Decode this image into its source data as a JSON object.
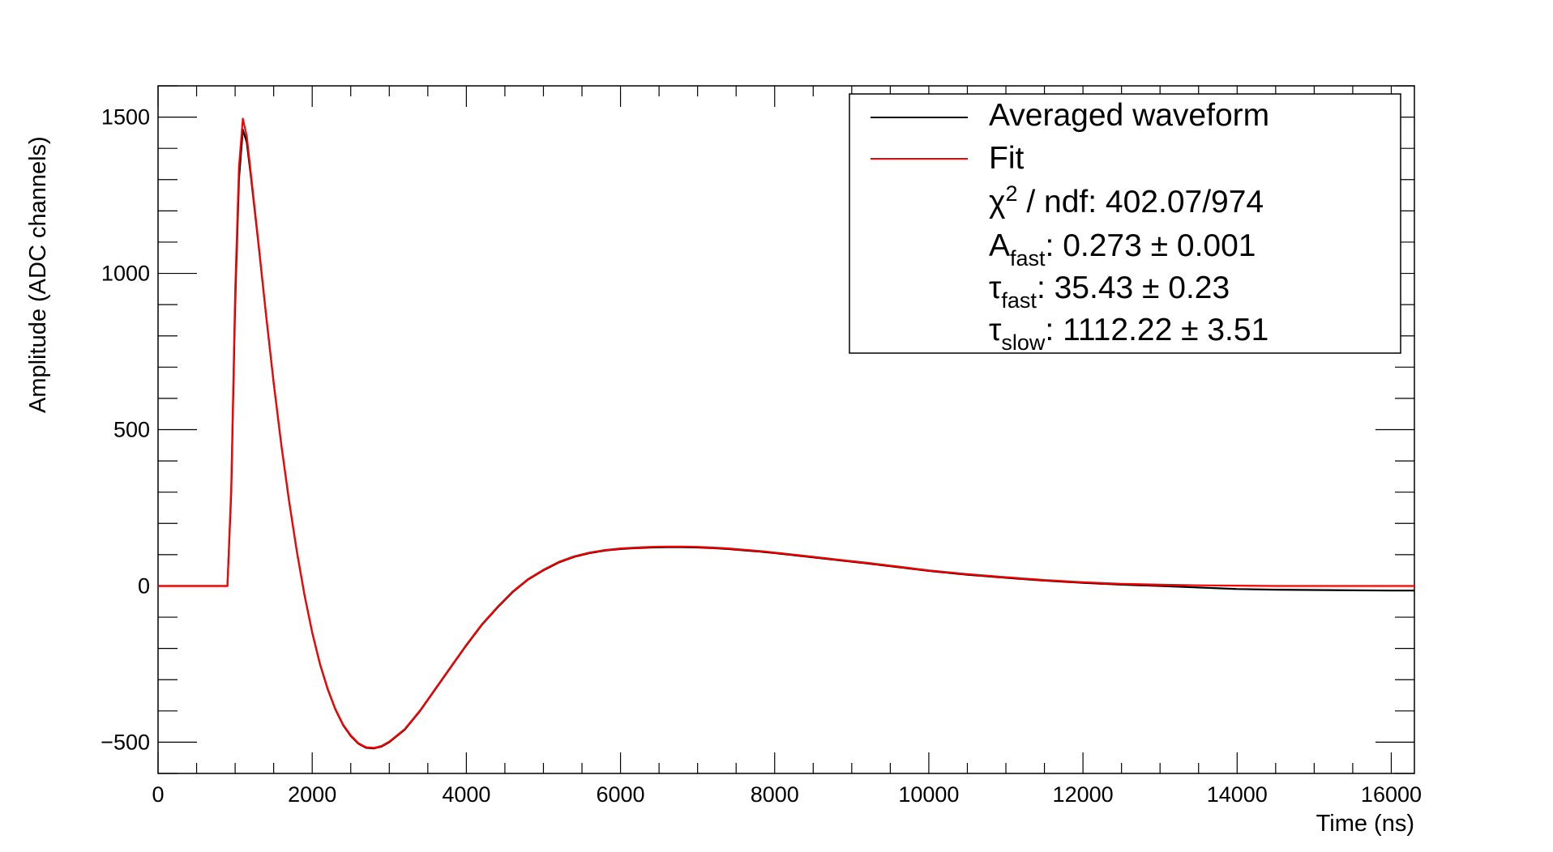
{
  "chart_data": {
    "type": "line",
    "xlabel": "Time (ns)",
    "ylabel": "Amplitude (ADC channels)",
    "xlim": [
      0,
      16300
    ],
    "ylim": [
      -600,
      1600
    ],
    "x_ticks": [
      "0",
      "2000",
      "4000",
      "6000",
      "8000",
      "10000",
      "12000",
      "14000",
      "16000"
    ],
    "y_ticks": [
      "−500",
      "0",
      "500",
      "1000",
      "1500"
    ],
    "x_tick_values": [
      0,
      2000,
      4000,
      6000,
      8000,
      10000,
      12000,
      14000,
      16000
    ],
    "y_tick_values": [
      -500,
      0,
      500,
      1000,
      1500
    ],
    "grid": false,
    "legend_position": "top-right",
    "series": [
      {
        "name": "Averaged waveform",
        "color": "#000000",
        "x": [
          0,
          900,
          950,
          1000,
          1050,
          1100,
          1150,
          1200,
          1300,
          1400,
          1500,
          1600,
          1700,
          1800,
          1900,
          2000,
          2100,
          2200,
          2300,
          2400,
          2500,
          2600,
          2700,
          2800,
          2900,
          3000,
          3200,
          3400,
          3600,
          3800,
          4000,
          4200,
          4400,
          4600,
          4800,
          5000,
          5200,
          5400,
          5600,
          5800,
          6000,
          6200,
          6400,
          6600,
          6800,
          7000,
          7200,
          7400,
          7600,
          7800,
          8000,
          8400,
          8800,
          9200,
          9600,
          10000,
          10500,
          11000,
          11500,
          12000,
          12500,
          13000,
          13500,
          14000,
          14500,
          15000,
          15500,
          16000,
          16300
        ],
        "y": [
          0,
          0,
          300,
          900,
          1300,
          1460,
          1420,
          1320,
          1100,
          870,
          650,
          450,
          270,
          110,
          -30,
          -150,
          -250,
          -330,
          -395,
          -445,
          -480,
          -505,
          -518,
          -520,
          -514,
          -500,
          -460,
          -400,
          -330,
          -260,
          -190,
          -125,
          -70,
          -20,
          20,
          50,
          75,
          93,
          105,
          113,
          118,
          121,
          123,
          124,
          124,
          123,
          121,
          118,
          114,
          110,
          105,
          94,
          83,
          72,
          60,
          48,
          36,
          26,
          17,
          10,
          4,
          0,
          -5,
          -10,
          -12,
          -13,
          -14,
          -15,
          -15
        ]
      },
      {
        "name": "Fit",
        "color": "#ff0000",
        "x": [
          0,
          900,
          950,
          1000,
          1050,
          1100,
          1150,
          1200,
          1300,
          1400,
          1500,
          1600,
          1700,
          1800,
          1900,
          2000,
          2100,
          2200,
          2300,
          2400,
          2500,
          2600,
          2700,
          2800,
          2900,
          3000,
          3200,
          3400,
          3600,
          3800,
          4000,
          4200,
          4400,
          4600,
          4800,
          5000,
          5200,
          5400,
          5600,
          5800,
          6000,
          6200,
          6400,
          6600,
          6800,
          7000,
          7200,
          7400,
          7600,
          7800,
          8000,
          8400,
          8800,
          9200,
          9600,
          10000,
          10500,
          11000,
          11500,
          12000,
          12500,
          13000,
          13500,
          14000,
          14500,
          15000,
          15500,
          16000,
          16300
        ],
        "y": [
          0,
          0,
          320,
          940,
          1340,
          1495,
          1440,
          1330,
          1105,
          872,
          652,
          452,
          272,
          112,
          -28,
          -148,
          -248,
          -328,
          -393,
          -443,
          -478,
          -503,
          -516,
          -518,
          -512,
          -498,
          -458,
          -398,
          -328,
          -258,
          -188,
          -123,
          -68,
          -18,
          22,
          52,
          77,
          95,
          107,
          115,
          120,
          123,
          125,
          126,
          126,
          125,
          123,
          120,
          116,
          112,
          107,
          96,
          85,
          74,
          62,
          50,
          38,
          28,
          19,
          12,
          7,
          4,
          2,
          1,
          0,
          0,
          0,
          0,
          0
        ]
      }
    ],
    "legend": {
      "entries": [
        "Averaged waveform",
        "Fit"
      ],
      "stats": {
        "chi_symbol": "χ",
        "chi_sup": "2",
        "chi_rest": " / ndf: 402.07/974",
        "afast_main": "A",
        "afast_sub": "fast",
        "afast_rest": ": 0.273 ± 0.001",
        "taufast_main": "τ",
        "taufast_sub": "fast",
        "taufast_rest": ": 35.43 ± 0.23",
        "tauslow_main": "τ",
        "tauslow_sub": "slow",
        "tauslow_rest": ": 1112.22 ± 3.51"
      }
    }
  }
}
